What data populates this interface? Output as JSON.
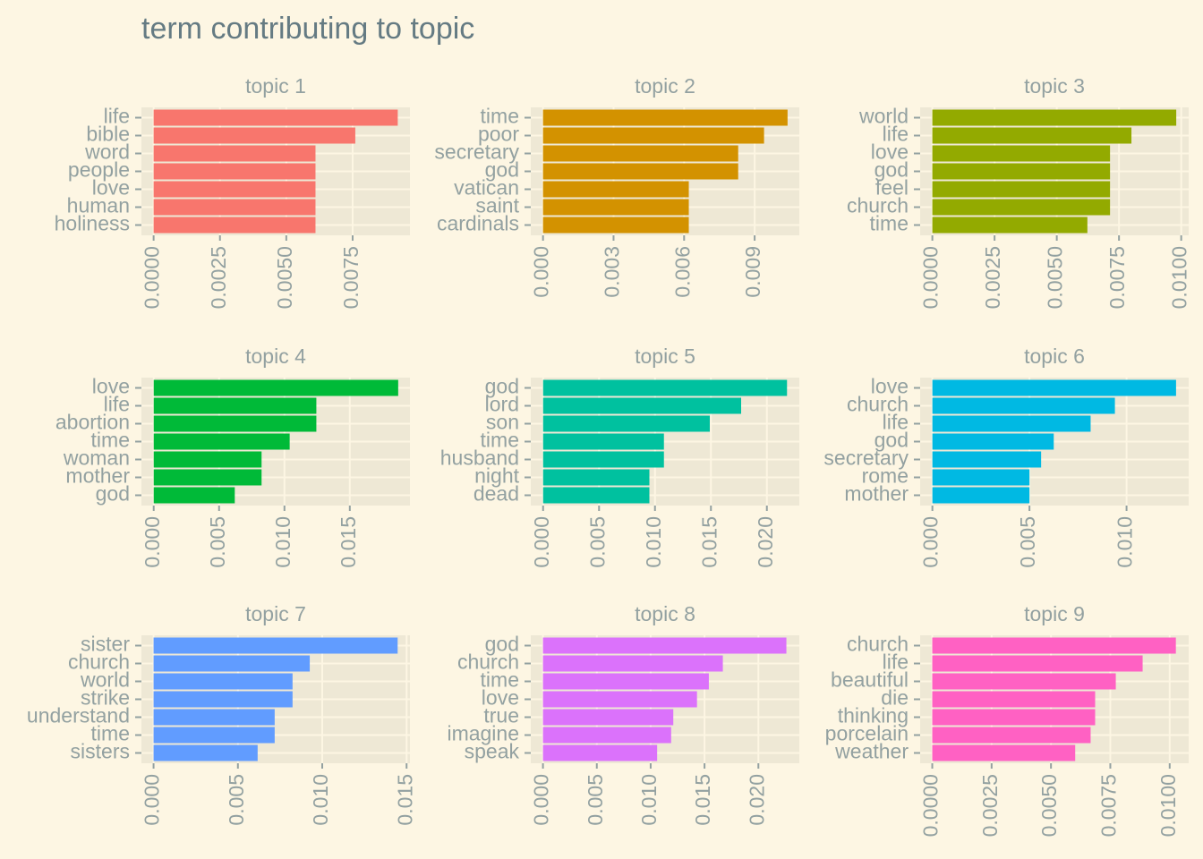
{
  "title": "term contributing to topic",
  "chart_data": [
    {
      "type": "bar",
      "orientation": "horizontal",
      "title": "topic 1",
      "color": "#F8766D",
      "grid": true,
      "categories": [
        "life",
        "bible",
        "word",
        "people",
        "love",
        "human",
        "holiness"
      ],
      "values": [
        0.0092,
        0.0076,
        0.0061,
        0.0061,
        0.0061,
        0.0061,
        0.0061
      ],
      "xlim": [
        -0.00046,
        0.00966
      ],
      "xticks": [
        {
          "value": 0,
          "label": "0.0000"
        },
        {
          "value": 0.0025,
          "label": "0.0025"
        },
        {
          "value": 0.005,
          "label": "0.0050"
        },
        {
          "value": 0.0075,
          "label": "0.0075"
        }
      ]
    },
    {
      "type": "bar",
      "orientation": "horizontal",
      "title": "topic 2",
      "color": "#D39200",
      "grid": true,
      "categories": [
        "time",
        "poor",
        "secretary",
        "god",
        "vatican",
        "saint",
        "cardinals"
      ],
      "values": [
        0.0104,
        0.0094,
        0.0083,
        0.0083,
        0.0062,
        0.0062,
        0.0062
      ],
      "xlim": [
        -0.00052,
        0.0109
      ],
      "xticks": [
        {
          "value": 0,
          "label": "0.000"
        },
        {
          "value": 0.003,
          "label": "0.003"
        },
        {
          "value": 0.006,
          "label": "0.006"
        },
        {
          "value": 0.009,
          "label": "0.009"
        }
      ]
    },
    {
      "type": "bar",
      "orientation": "horizontal",
      "title": "topic 3",
      "color": "#93AA00",
      "grid": true,
      "categories": [
        "world",
        "life",
        "love",
        "god",
        "feel",
        "church",
        "time"
      ],
      "values": [
        0.0098,
        0.008,
        0.00714,
        0.00714,
        0.00714,
        0.00714,
        0.00623
      ],
      "xlim": [
        -0.00049,
        0.0103
      ],
      "xticks": [
        {
          "value": 0,
          "label": "0.0000"
        },
        {
          "value": 0.0025,
          "label": "0.0025"
        },
        {
          "value": 0.005,
          "label": "0.0050"
        },
        {
          "value": 0.0075,
          "label": "0.0075"
        },
        {
          "value": 0.01,
          "label": "0.0100"
        }
      ]
    },
    {
      "type": "bar",
      "orientation": "horizontal",
      "title": "topic 4",
      "color": "#00BA38",
      "grid": true,
      "categories": [
        "love",
        "life",
        "abortion",
        "time",
        "woman",
        "mother",
        "god"
      ],
      "values": [
        0.0187,
        0.01244,
        0.01244,
        0.0104,
        0.00825,
        0.00825,
        0.0062
      ],
      "xlim": [
        -0.00094,
        0.0196
      ],
      "xticks": [
        {
          "value": 0,
          "label": "0.000"
        },
        {
          "value": 0.005,
          "label": "0.005"
        },
        {
          "value": 0.01,
          "label": "0.010"
        },
        {
          "value": 0.015,
          "label": "0.015"
        }
      ]
    },
    {
      "type": "bar",
      "orientation": "horizontal",
      "title": "topic 5",
      "color": "#00C19F",
      "grid": true,
      "categories": [
        "god",
        "lord",
        "son",
        "time",
        "husband",
        "night",
        "dead"
      ],
      "values": [
        0.0218,
        0.0177,
        0.0149,
        0.0108,
        0.0108,
        0.0095,
        0.0095
      ],
      "xlim": [
        -0.0011,
        0.0229
      ],
      "xticks": [
        {
          "value": 0,
          "label": "0.000"
        },
        {
          "value": 0.005,
          "label": "0.005"
        },
        {
          "value": 0.01,
          "label": "0.010"
        },
        {
          "value": 0.015,
          "label": "0.015"
        },
        {
          "value": 0.02,
          "label": "0.020"
        }
      ]
    },
    {
      "type": "bar",
      "orientation": "horizontal",
      "title": "topic 6",
      "color": "#00B9E3",
      "grid": true,
      "categories": [
        "love",
        "church",
        "life",
        "god",
        "secretary",
        "rome",
        "mother"
      ],
      "values": [
        0.01255,
        0.0094,
        0.00815,
        0.00625,
        0.0056,
        0.005,
        0.005
      ],
      "xlim": [
        -0.00063,
        0.0132
      ],
      "xticks": [
        {
          "value": 0,
          "label": "0.000"
        },
        {
          "value": 0.005,
          "label": "0.005"
        },
        {
          "value": 0.01,
          "label": "0.010"
        }
      ]
    },
    {
      "type": "bar",
      "orientation": "horizontal",
      "title": "topic 7",
      "color": "#619CFF",
      "grid": true,
      "categories": [
        "sister",
        "church",
        "world",
        "strike",
        "understand",
        "time",
        "sisters"
      ],
      "values": [
        0.01447,
        0.00926,
        0.00824,
        0.00824,
        0.00718,
        0.00718,
        0.00617
      ],
      "xlim": [
        -0.00072,
        0.0152
      ],
      "xticks": [
        {
          "value": 0,
          "label": "0.000"
        },
        {
          "value": 0.005,
          "label": "0.005"
        },
        {
          "value": 0.01,
          "label": "0.010"
        },
        {
          "value": 0.015,
          "label": "0.015"
        }
      ]
    },
    {
      "type": "bar",
      "orientation": "horizontal",
      "title": "topic 8",
      "color": "#DB72FB",
      "grid": true,
      "categories": [
        "god",
        "church",
        "time",
        "love",
        "true",
        "imagine",
        "speak"
      ],
      "values": [
        0.0226,
        0.0167,
        0.0154,
        0.0143,
        0.0121,
        0.0119,
        0.0106
      ],
      "xlim": [
        -0.00113,
        0.0238
      ],
      "xticks": [
        {
          "value": 0,
          "label": "0.000"
        },
        {
          "value": 0.005,
          "label": "0.005"
        },
        {
          "value": 0.01,
          "label": "0.010"
        },
        {
          "value": 0.015,
          "label": "0.015"
        },
        {
          "value": 0.02,
          "label": "0.020"
        }
      ]
    },
    {
      "type": "bar",
      "orientation": "horizontal",
      "title": "topic 9",
      "color": "#FF61C3",
      "grid": true,
      "categories": [
        "church",
        "life",
        "beautiful",
        "die",
        "thinking",
        "porcelain",
        "weather"
      ],
      "values": [
        0.01026,
        0.00886,
        0.00773,
        0.00686,
        0.00686,
        0.00667,
        0.00602
      ],
      "xlim": [
        -0.00051,
        0.0108
      ],
      "xticks": [
        {
          "value": 0,
          "label": "0.0000"
        },
        {
          "value": 0.0025,
          "label": "0.0025"
        },
        {
          "value": 0.005,
          "label": "0.0050"
        },
        {
          "value": 0.0075,
          "label": "0.0075"
        },
        {
          "value": 0.01,
          "label": "0.0100"
        }
      ]
    }
  ]
}
